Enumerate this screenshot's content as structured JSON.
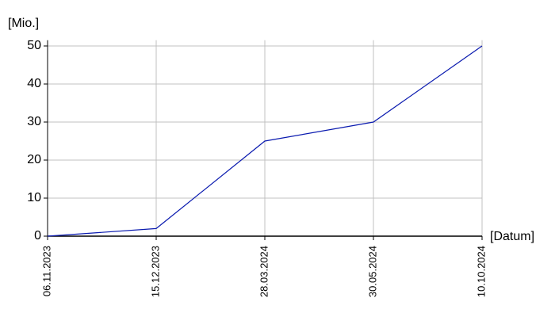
{
  "chart_data": {
    "type": "line",
    "y_axis_label": "[Mio.]",
    "x_axis_label": "[Datum]",
    "categories": [
      "06.11.2023",
      "15.12.2023",
      "28.03.2024",
      "30.05.2024",
      "10.10.2024"
    ],
    "series": [
      {
        "name": null,
        "color": "#0a1aaf",
        "values": [
          0,
          2,
          25,
          30,
          50
        ]
      }
    ],
    "ylim": [
      0,
      51.5
    ],
    "yticks": [
      0,
      10,
      20,
      30,
      40,
      50
    ],
    "grid": true
  }
}
